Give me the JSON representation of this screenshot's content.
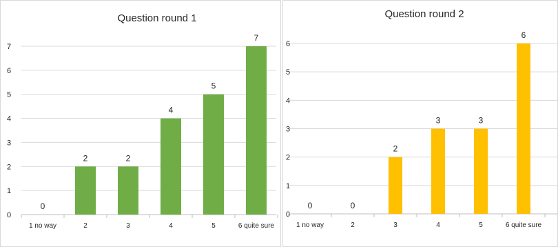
{
  "chart_data": [
    {
      "type": "bar",
      "title": "Question round 1",
      "categories": [
        "1 no way",
        "2",
        "3",
        "4",
        "5",
        "6 quite sure"
      ],
      "values": [
        0,
        2,
        2,
        4,
        5,
        7
      ],
      "data_labels": [
        "0",
        "2",
        "2",
        "4",
        "5",
        "7"
      ],
      "yticks": [
        "0",
        "1",
        "2",
        "3",
        "4",
        "5",
        "6",
        "7"
      ],
      "ylim": [
        0,
        7
      ],
      "grid": true,
      "color": "#70ad47"
    },
    {
      "type": "bar",
      "title": "Question round 2",
      "categories": [
        "1 no way",
        "2",
        "3",
        "4",
        "5",
        "6 quite sure"
      ],
      "values": [
        0,
        0,
        2,
        3,
        3,
        6
      ],
      "data_labels": [
        "0",
        "0",
        "2",
        "3",
        "3",
        "6"
      ],
      "yticks": [
        "0",
        "1",
        "2",
        "3",
        "4",
        "5",
        "6"
      ],
      "ylim": [
        0,
        6
      ],
      "grid": true,
      "color": "#ffc000"
    }
  ]
}
